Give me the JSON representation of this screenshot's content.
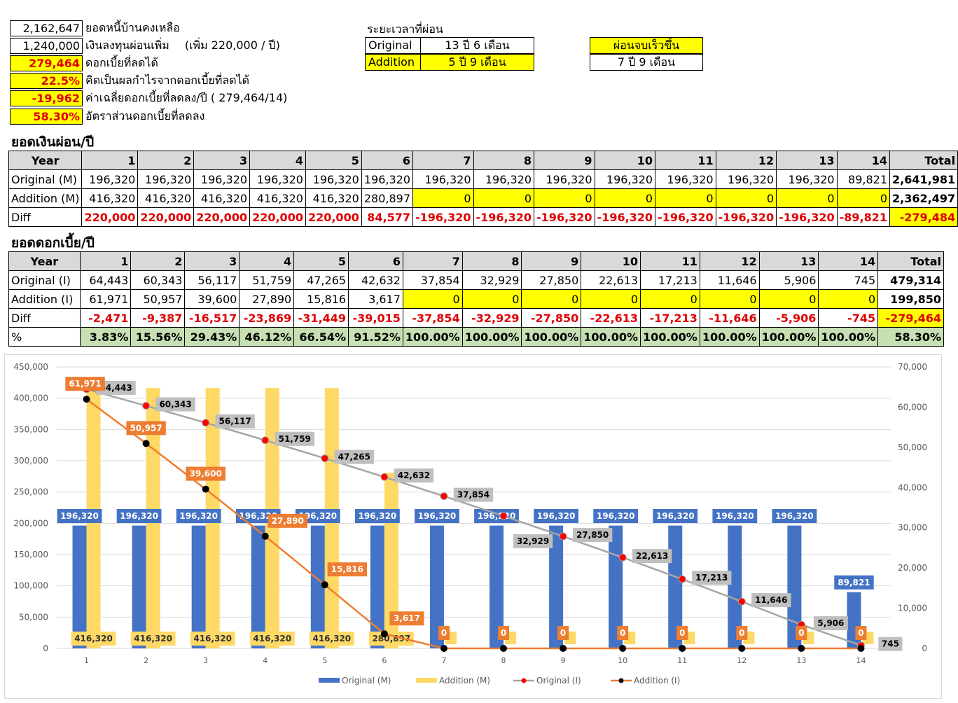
{
  "summary": {
    "rows": [
      {
        "value": "2,162,647",
        "label": "ยอดหนี้บ้านคงเหลือ",
        "highlight": false
      },
      {
        "value": "1,240,000",
        "label": "เงินลงทุนผ่อนเพิ่ม",
        "extra": "(เพิ่ม 220,000 / ปี)",
        "highlight": false
      },
      {
        "value": "279,464",
        "label": "ดอกเบี้ยที่ลดได้",
        "highlight": true
      },
      {
        "value": "22.5%",
        "label": "คิดเป็นผลกำไรจากดอกเบี้ยที่ลดได้",
        "highlight": true
      },
      {
        "value": "-19,962",
        "label": "ค่าเฉลี่ยดอกเบี้ยที่ลดลง/ปี ( 279,464/14)",
        "highlight": true
      },
      {
        "value": "58.30%",
        "label": "อัตราส่วนดอกเบี้ยที่ลดลง",
        "highlight": true
      }
    ],
    "period_title": "ระยะเวลาที่ผ่อน",
    "period": [
      {
        "name": "Original",
        "value": "13 ปี 6 เดือน"
      },
      {
        "name": "Addition",
        "value": "5 ปี 9 เดือน"
      }
    ],
    "faster_label": "ผ่อนจบเร็วขึ้น",
    "faster_value": "7 ปี 9 เดือน"
  },
  "payments": {
    "title": "ยอดเงินผ่อน/ปี",
    "header": [
      "Year",
      "1",
      "2",
      "3",
      "4",
      "5",
      "6",
      "7",
      "8",
      "9",
      "10",
      "11",
      "12",
      "13",
      "14",
      "Total"
    ],
    "rows": [
      {
        "label": "Original (M)",
        "cells": [
          "196,320",
          "196,320",
          "196,320",
          "196,320",
          "196,320",
          "196,320",
          "196,320",
          "196,320",
          "196,320",
          "196,320",
          "196,320",
          "196,320",
          "196,320",
          "89,821"
        ],
        "total": "2,641,981"
      },
      {
        "label": "Addition (M)",
        "cells": [
          "416,320",
          "416,320",
          "416,320",
          "416,320",
          "416,320",
          "280,897",
          "0",
          "0",
          "0",
          "0",
          "0",
          "0",
          "0",
          "0"
        ],
        "total": "2,362,497"
      },
      {
        "label": "Diff",
        "cells": [
          "220,000",
          "220,000",
          "220,000",
          "220,000",
          "220,000",
          "84,577",
          "-196,320",
          "-196,320",
          "-196,320",
          "-196,320",
          "-196,320",
          "-196,320",
          "-196,320",
          "-89,821"
        ],
        "total": "-279,484"
      }
    ]
  },
  "interest": {
    "title": "ยอดดอกเบี้ย/ปี",
    "header": [
      "Year",
      "1",
      "2",
      "3",
      "4",
      "5",
      "6",
      "7",
      "8",
      "9",
      "10",
      "11",
      "12",
      "13",
      "14",
      "Total"
    ],
    "rows": [
      {
        "label": "Original (I)",
        "cells": [
          "64,443",
          "60,343",
          "56,117",
          "51,759",
          "47,265",
          "42,632",
          "37,854",
          "32,929",
          "27,850",
          "22,613",
          "17,213",
          "11,646",
          "5,906",
          "745"
        ],
        "total": "479,314"
      },
      {
        "label": "Addition (I)",
        "cells": [
          "61,971",
          "50,957",
          "39,600",
          "27,890",
          "15,816",
          "3,617",
          "0",
          "0",
          "0",
          "0",
          "0",
          "0",
          "0",
          "0"
        ],
        "total": "199,850"
      },
      {
        "label": "Diff",
        "cells": [
          "-2,471",
          "-9,387",
          "-16,517",
          "-23,869",
          "-31,449",
          "-39,015",
          "-37,854",
          "-32,929",
          "-27,850",
          "-22,613",
          "-17,213",
          "-11,646",
          "-5,906",
          "-745"
        ],
        "total": "-279,464"
      },
      {
        "label": "%",
        "cells": [
          "3.83%",
          "15.56%",
          "29.43%",
          "46.12%",
          "66.54%",
          "91.52%",
          "100.00%",
          "100.00%",
          "100.00%",
          "100.00%",
          "100.00%",
          "100.00%",
          "100.00%",
          "100.00%"
        ],
        "total": "58.30%"
      }
    ]
  },
  "chart_data": {
    "type": "bar",
    "categories": [
      "1",
      "2",
      "3",
      "4",
      "5",
      "6",
      "7",
      "8",
      "9",
      "10",
      "11",
      "12",
      "13",
      "14"
    ],
    "series": [
      {
        "name": "Original (M)",
        "type": "bar",
        "axis": "left",
        "color": "#4472c4",
        "values": [
          196320,
          196320,
          196320,
          196320,
          196320,
          196320,
          196320,
          196320,
          196320,
          196320,
          196320,
          196320,
          196320,
          89821
        ]
      },
      {
        "name": "Addition (M)",
        "type": "bar",
        "axis": "left",
        "color": "#ffd966",
        "values": [
          416320,
          416320,
          416320,
          416320,
          416320,
          280897,
          0,
          0,
          0,
          0,
          0,
          0,
          0,
          0
        ]
      },
      {
        "name": "Original (I)",
        "type": "line",
        "axis": "right",
        "color": "#a5a5a5",
        "marker": "#ff0000",
        "values": [
          64443,
          60343,
          56117,
          51759,
          47265,
          42632,
          37854,
          32929,
          27850,
          22613,
          17213,
          11646,
          5906,
          745
        ]
      },
      {
        "name": "Addition (I)",
        "type": "line",
        "axis": "right",
        "color": "#ed7d31",
        "marker": "#000000",
        "values": [
          61971,
          50957,
          39600,
          27890,
          15816,
          3617,
          0,
          0,
          0,
          0,
          0,
          0,
          0,
          0
        ]
      }
    ],
    "y_left": {
      "min": 0,
      "max": 450000,
      "step": 50000,
      "ticks": [
        "0",
        "50,000",
        "100,000",
        "150,000",
        "200,000",
        "250,000",
        "300,000",
        "350,000",
        "400,000",
        "450,000"
      ]
    },
    "y_right": {
      "min": 0,
      "max": 70000,
      "step": 10000,
      "ticks": [
        "0",
        "10,000",
        "20,000",
        "30,000",
        "40,000",
        "50,000",
        "60,000",
        "70,000"
      ]
    },
    "legend_position": "bottom",
    "grid": true
  }
}
